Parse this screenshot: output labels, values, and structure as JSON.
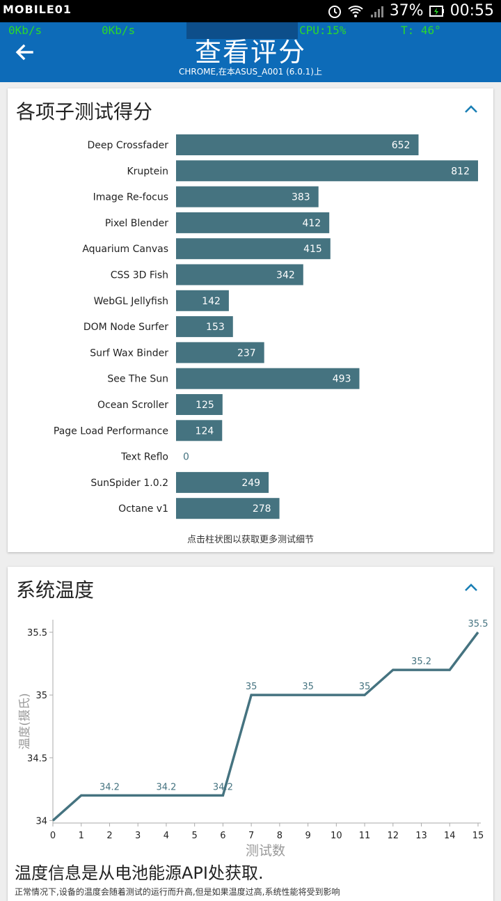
{
  "statusbar": {
    "brand": "MOBILE01",
    "battery": "37%",
    "time": "00:55"
  },
  "overlay": {
    "net_down": "0Kb/s",
    "net_up": "0Kb/s",
    "cpu": "CPU:15%",
    "temp": "T: 46°"
  },
  "header": {
    "title": "查看评分",
    "subtitle": "CHROME,在本ASUS_A001 (6.0.1)上"
  },
  "scores_card": {
    "title": "各项子测试得分",
    "hint": "点击柱状图以获取更多测试细节"
  },
  "temp_card": {
    "title": "系统温度",
    "note": "温度信息是从电池能源API处获取.",
    "note2": "正常情况下,设备的温度会随着测试的运行而升高,但是如果温度过高,系统性能将受到影响"
  },
  "colors": {
    "appbar": "#0d6bb8",
    "bar": "#457380",
    "accent": "#1a7fb5"
  },
  "chart_data": [
    {
      "type": "bar",
      "orientation": "horizontal",
      "categories": [
        "Deep Crossfader",
        "Kruptein",
        "Image Re-focus",
        "Pixel Blender",
        "Aquarium Canvas",
        "CSS 3D Fish",
        "WebGL Jellyfish",
        "DOM Node Surfer",
        "Surf Wax Binder",
        "See The Sun",
        "Ocean Scroller",
        "Page Load Performance",
        "Text Reflo",
        "SunSpider 1.0.2",
        "Octane v1"
      ],
      "values": [
        652,
        812,
        383,
        412,
        415,
        342,
        142,
        153,
        237,
        493,
        125,
        124,
        0,
        249,
        278
      ],
      "xlim": [
        0,
        812
      ],
      "grid": false,
      "legend": "none"
    },
    {
      "type": "line",
      "x": [
        0,
        1,
        2,
        3,
        4,
        5,
        6,
        7,
        8,
        9,
        10,
        11,
        12,
        13,
        14,
        15
      ],
      "y": [
        34,
        34.2,
        34.2,
        34.2,
        34.2,
        34.2,
        34.2,
        35,
        35,
        35,
        35,
        35,
        35.2,
        35.2,
        35.2,
        35.5
      ],
      "labels": [
        "",
        "",
        "34.2",
        "",
        "34.2",
        "",
        "34.2",
        "35",
        "",
        "35",
        "",
        "35",
        "",
        "35.2",
        "",
        "35.5"
      ],
      "xlabel": "测试数",
      "ylabel": "温度(摄氏)",
      "xticks": [
        "0",
        "1",
        "2",
        "3",
        "4",
        "5",
        "6",
        "7",
        "8",
        "9",
        "10",
        "11",
        "12",
        "13",
        "14",
        "15"
      ],
      "yticks": [
        "34",
        "34.5",
        "35",
        "35.5"
      ],
      "ylim": [
        33.98,
        35.6
      ],
      "xlim": [
        0,
        15
      ],
      "grid": false,
      "legend": "none"
    }
  ]
}
